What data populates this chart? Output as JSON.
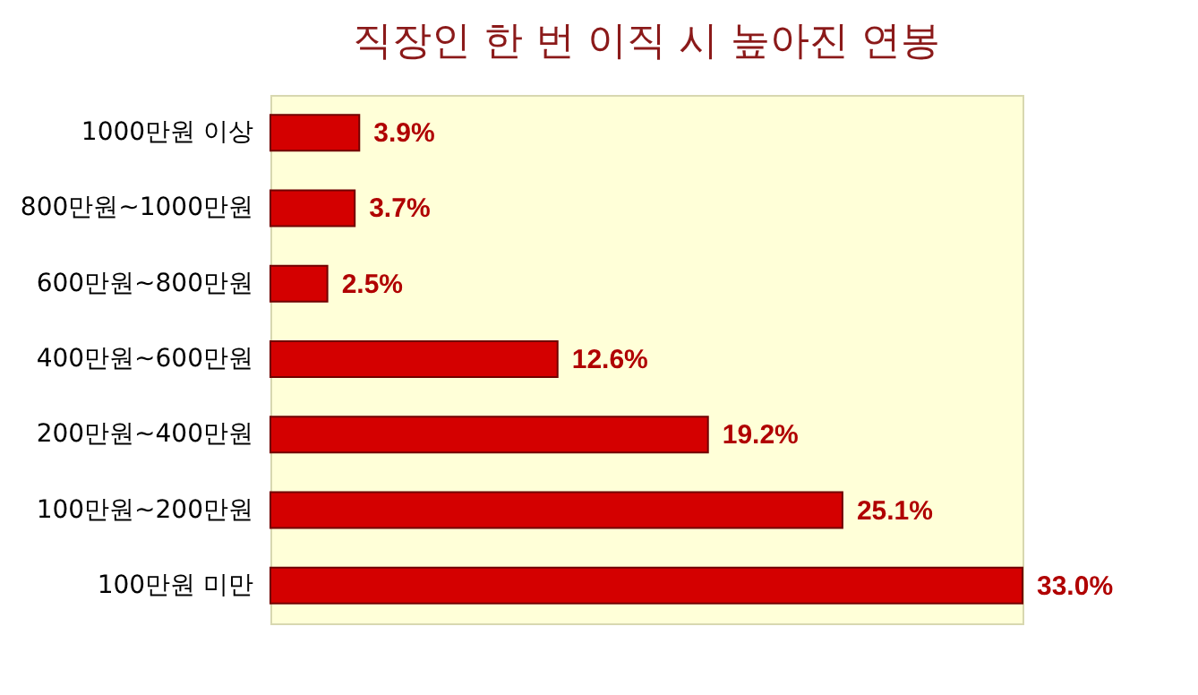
{
  "chart_data": {
    "type": "bar",
    "orientation": "horizontal",
    "title": "직장인 한 번 이직 시 높아진 연봉",
    "categories": [
      "1000만원 이상",
      "800만원~1000만원",
      "600만원~800만원",
      "400만원~600만원",
      "200만원~400만원",
      "100만원~200만원",
      "100만원 미만"
    ],
    "values": [
      3.9,
      3.7,
      2.5,
      12.6,
      19.2,
      25.1,
      33.0
    ],
    "value_labels": [
      "3.9%",
      "3.7%",
      "2.5%",
      "12.6%",
      "19.2%",
      "25.1%",
      "33.0%"
    ],
    "color": "#d40000"
  }
}
